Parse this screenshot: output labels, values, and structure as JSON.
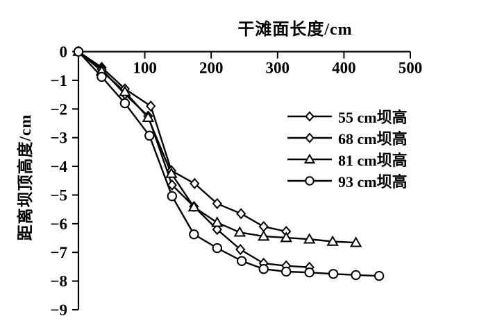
{
  "chart_data": {
    "type": "line",
    "title": "",
    "xlabel": "干滩面长度/cm",
    "ylabel": "距离坝顶高度/cm",
    "xlim": [
      0,
      500
    ],
    "ylim": [
      -9,
      0
    ],
    "x_tick_values": [
      100,
      200,
      300,
      400,
      500
    ],
    "x_tick_labels": [
      "100",
      "200",
      "300",
      "400",
      "500"
    ],
    "y_tick_values": [
      0,
      -1,
      -2,
      -3,
      -4,
      -5,
      -6,
      -7,
      -8,
      -9
    ],
    "y_tick_labels": [
      "0",
      "−1",
      "−2",
      "−3",
      "−4",
      "−5",
      "−6",
      "−7",
      "−8",
      "−9"
    ],
    "grid": false,
    "legend_position": "inside-upper-right",
    "line_color": "#000000",
    "marker_fill": "#ffffff",
    "background": "#ffffff",
    "series": [
      {
        "name": "55 cm坝高",
        "marker": "diamond",
        "points": [
          [
            0,
            0
          ],
          [
            35,
            -0.55
          ],
          [
            70,
            -1.3
          ],
          [
            109,
            -1.9
          ],
          [
            140,
            -4.15
          ],
          [
            175,
            -4.6
          ],
          [
            209,
            -5.3
          ],
          [
            245,
            -5.65
          ],
          [
            279,
            -6.1
          ],
          [
            313,
            -6.27
          ]
        ]
      },
      {
        "name": "68 cm坝高",
        "marker": "diamond",
        "points": [
          [
            0,
            0
          ],
          [
            35,
            -0.62
          ],
          [
            70,
            -1.48
          ],
          [
            105,
            -2.25
          ],
          [
            141,
            -4.65
          ],
          [
            174,
            -5.4
          ],
          [
            209,
            -6.2
          ],
          [
            244,
            -6.9
          ],
          [
            279,
            -7.38
          ],
          [
            313,
            -7.47
          ],
          [
            348,
            -7.52
          ]
        ]
      },
      {
        "name": "81 cm坝高",
        "marker": "triangle",
        "points": [
          [
            0,
            0
          ],
          [
            35,
            -0.68
          ],
          [
            70,
            -1.4
          ],
          [
            105,
            -2.3
          ],
          [
            140,
            -4.25
          ],
          [
            174,
            -5.42
          ],
          [
            209,
            -5.96
          ],
          [
            243,
            -6.3
          ],
          [
            279,
            -6.44
          ],
          [
            313,
            -6.49
          ],
          [
            348,
            -6.54
          ],
          [
            383,
            -6.62
          ],
          [
            418,
            -6.66
          ]
        ]
      },
      {
        "name": "93 cm坝高",
        "marker": "circle",
        "points": [
          [
            0,
            0
          ],
          [
            35,
            -0.88
          ],
          [
            70,
            -1.8
          ],
          [
            107,
            -2.93
          ],
          [
            141,
            -5.04
          ],
          [
            174,
            -6.37
          ],
          [
            209,
            -6.85
          ],
          [
            246,
            -7.3
          ],
          [
            279,
            -7.58
          ],
          [
            313,
            -7.67
          ],
          [
            348,
            -7.7
          ],
          [
            384,
            -7.75
          ],
          [
            418,
            -7.79
          ],
          [
            453,
            -7.82
          ]
        ]
      }
    ]
  }
}
